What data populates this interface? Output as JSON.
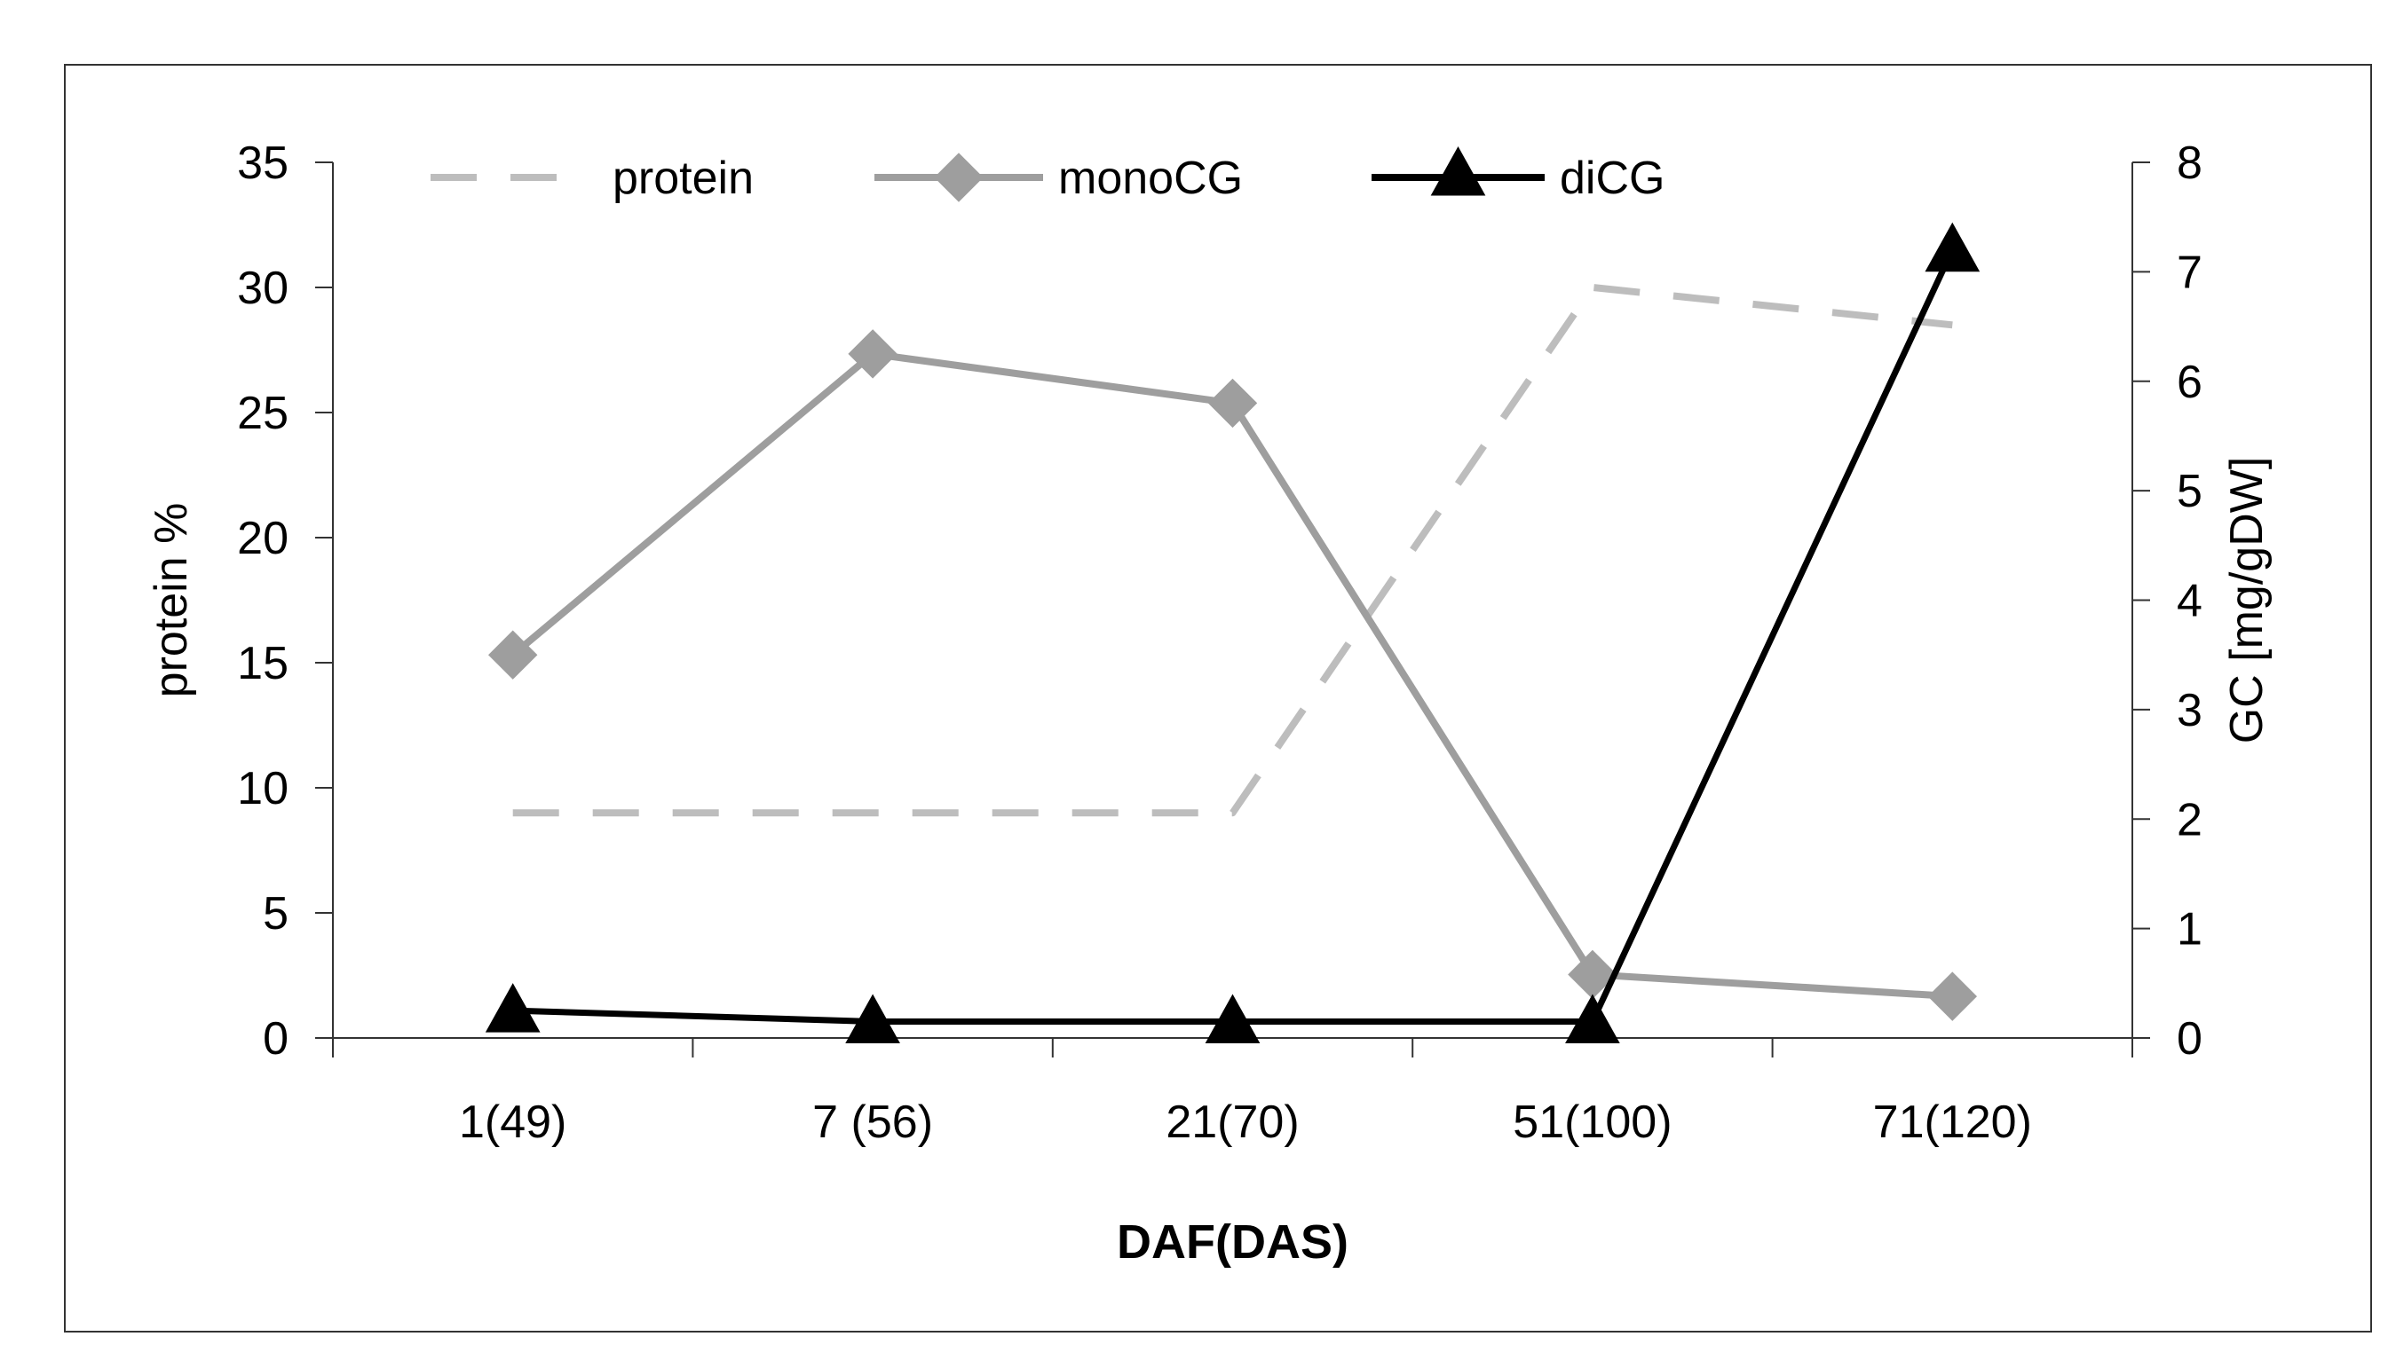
{
  "chart_data": {
    "type": "line",
    "title": "",
    "xlabel": "DAF(DAS)",
    "ylabel": "protein %",
    "y2label": "GC [mg/gDW]",
    "categories": [
      "1(49)",
      "7 (56)",
      "21(70)",
      "51(100)",
      "71(120)"
    ],
    "ylim": [
      0,
      35
    ],
    "y2lim": [
      0,
      8
    ],
    "yticks": [
      0,
      5,
      10,
      15,
      20,
      25,
      30,
      35
    ],
    "y2ticks": [
      0,
      1,
      2,
      3,
      4,
      5,
      6,
      7,
      8
    ],
    "grid": false,
    "legend_position": "top",
    "series": [
      {
        "name": "protein",
        "axis": "left",
        "style": "dashed",
        "color": "#bdbdbd",
        "marker": "none",
        "values": [
          9,
          9,
          9,
          30,
          28.5
        ]
      },
      {
        "name": "monoCG",
        "axis": "right",
        "style": "solid",
        "color": "#9e9e9e",
        "marker": "diamond",
        "values": [
          3.5,
          6.25,
          5.8,
          0.58,
          0.38
        ]
      },
      {
        "name": "diCG",
        "axis": "right",
        "style": "solid",
        "color": "#000000",
        "marker": "triangle",
        "values": [
          0.25,
          0.15,
          0.15,
          0.15,
          7.2
        ]
      }
    ]
  }
}
